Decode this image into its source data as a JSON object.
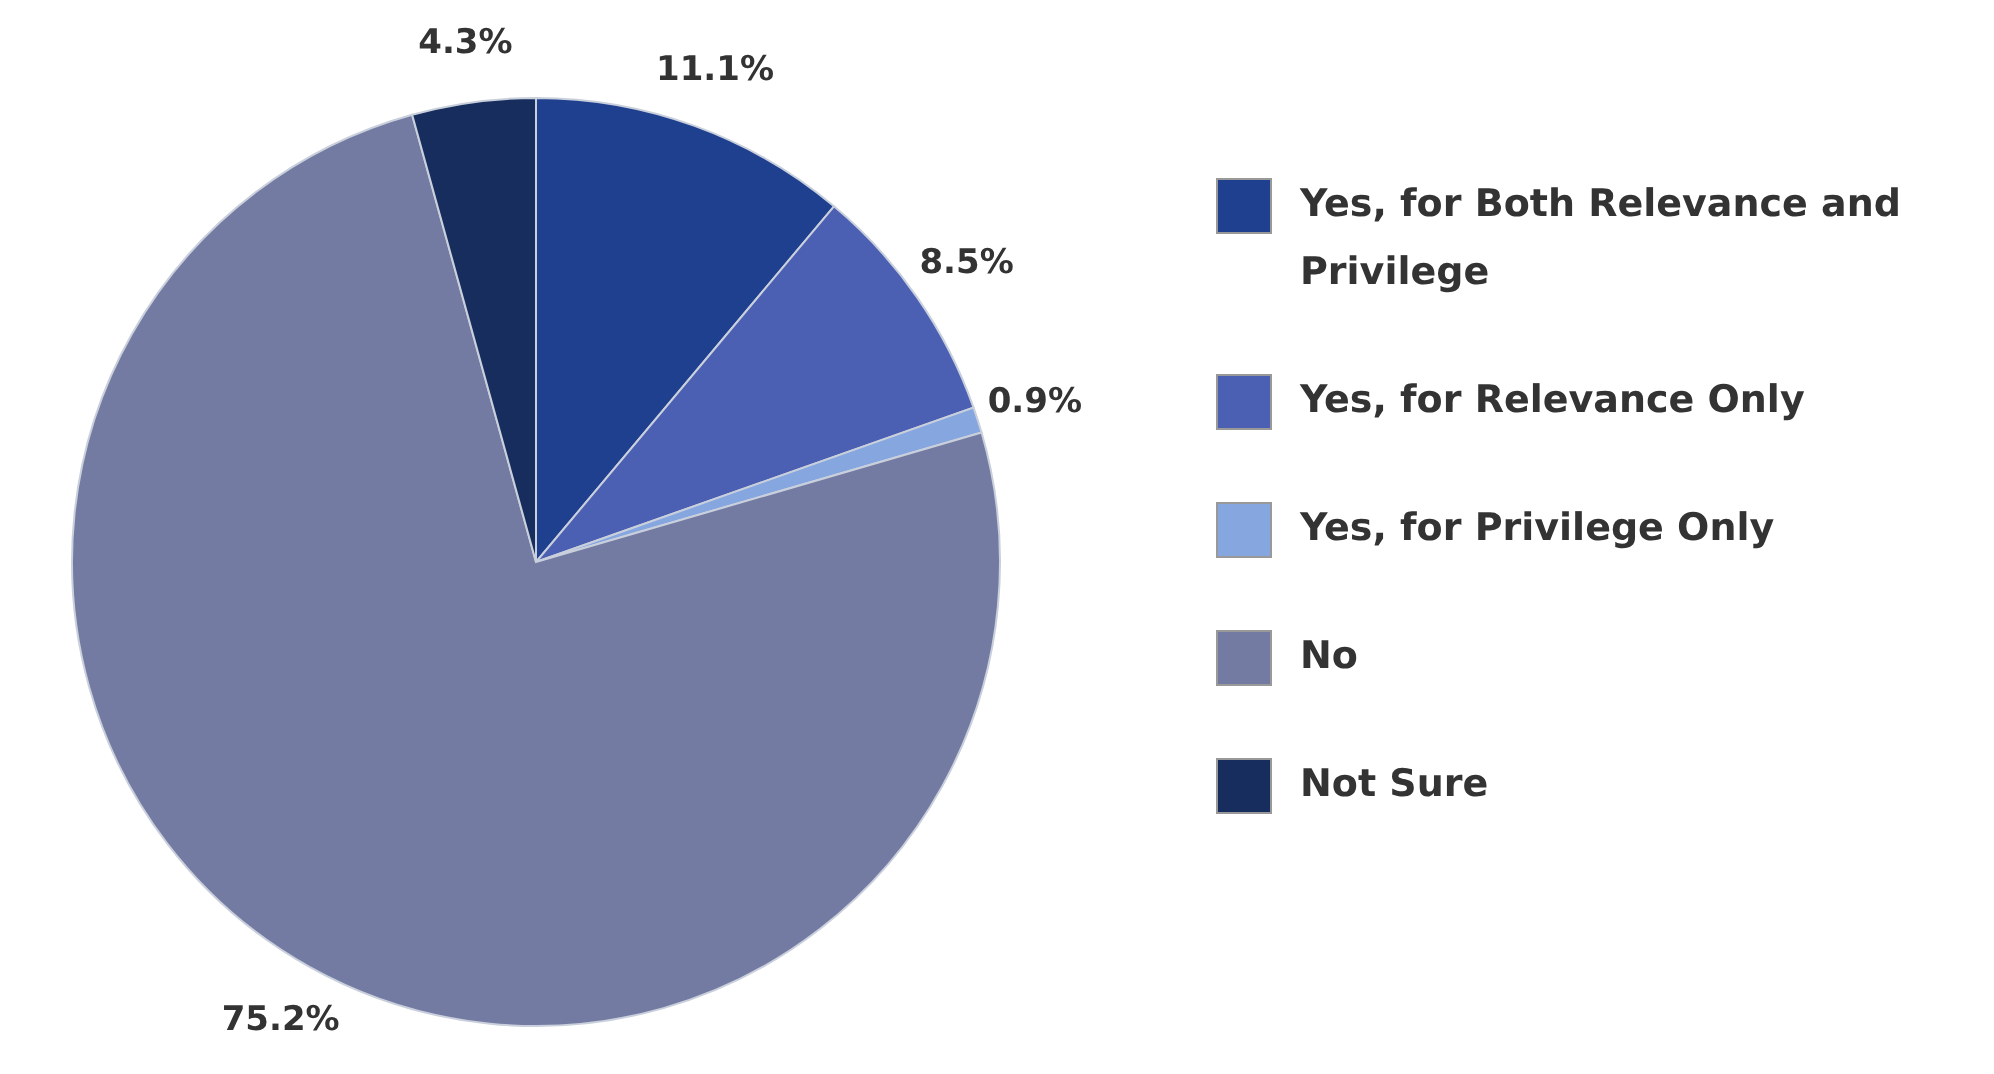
{
  "chart_data": {
    "type": "pie",
    "categories": [
      "Yes, for Both Relevance and Privilege",
      "Yes, for Relevance Only",
      "Yes, for Privilege Only",
      "No",
      "Not Sure"
    ],
    "values": [
      11.1,
      8.5,
      0.9,
      75.2,
      4.3
    ],
    "value_labels": [
      "11.1%",
      "8.5%",
      "0.9%",
      "75.2%",
      "4.3%"
    ],
    "colors": [
      "#1f3f8f",
      "#4b5fb3",
      "#86a6e0",
      "#747ba3",
      "#172d5e"
    ],
    "legend": "right"
  }
}
